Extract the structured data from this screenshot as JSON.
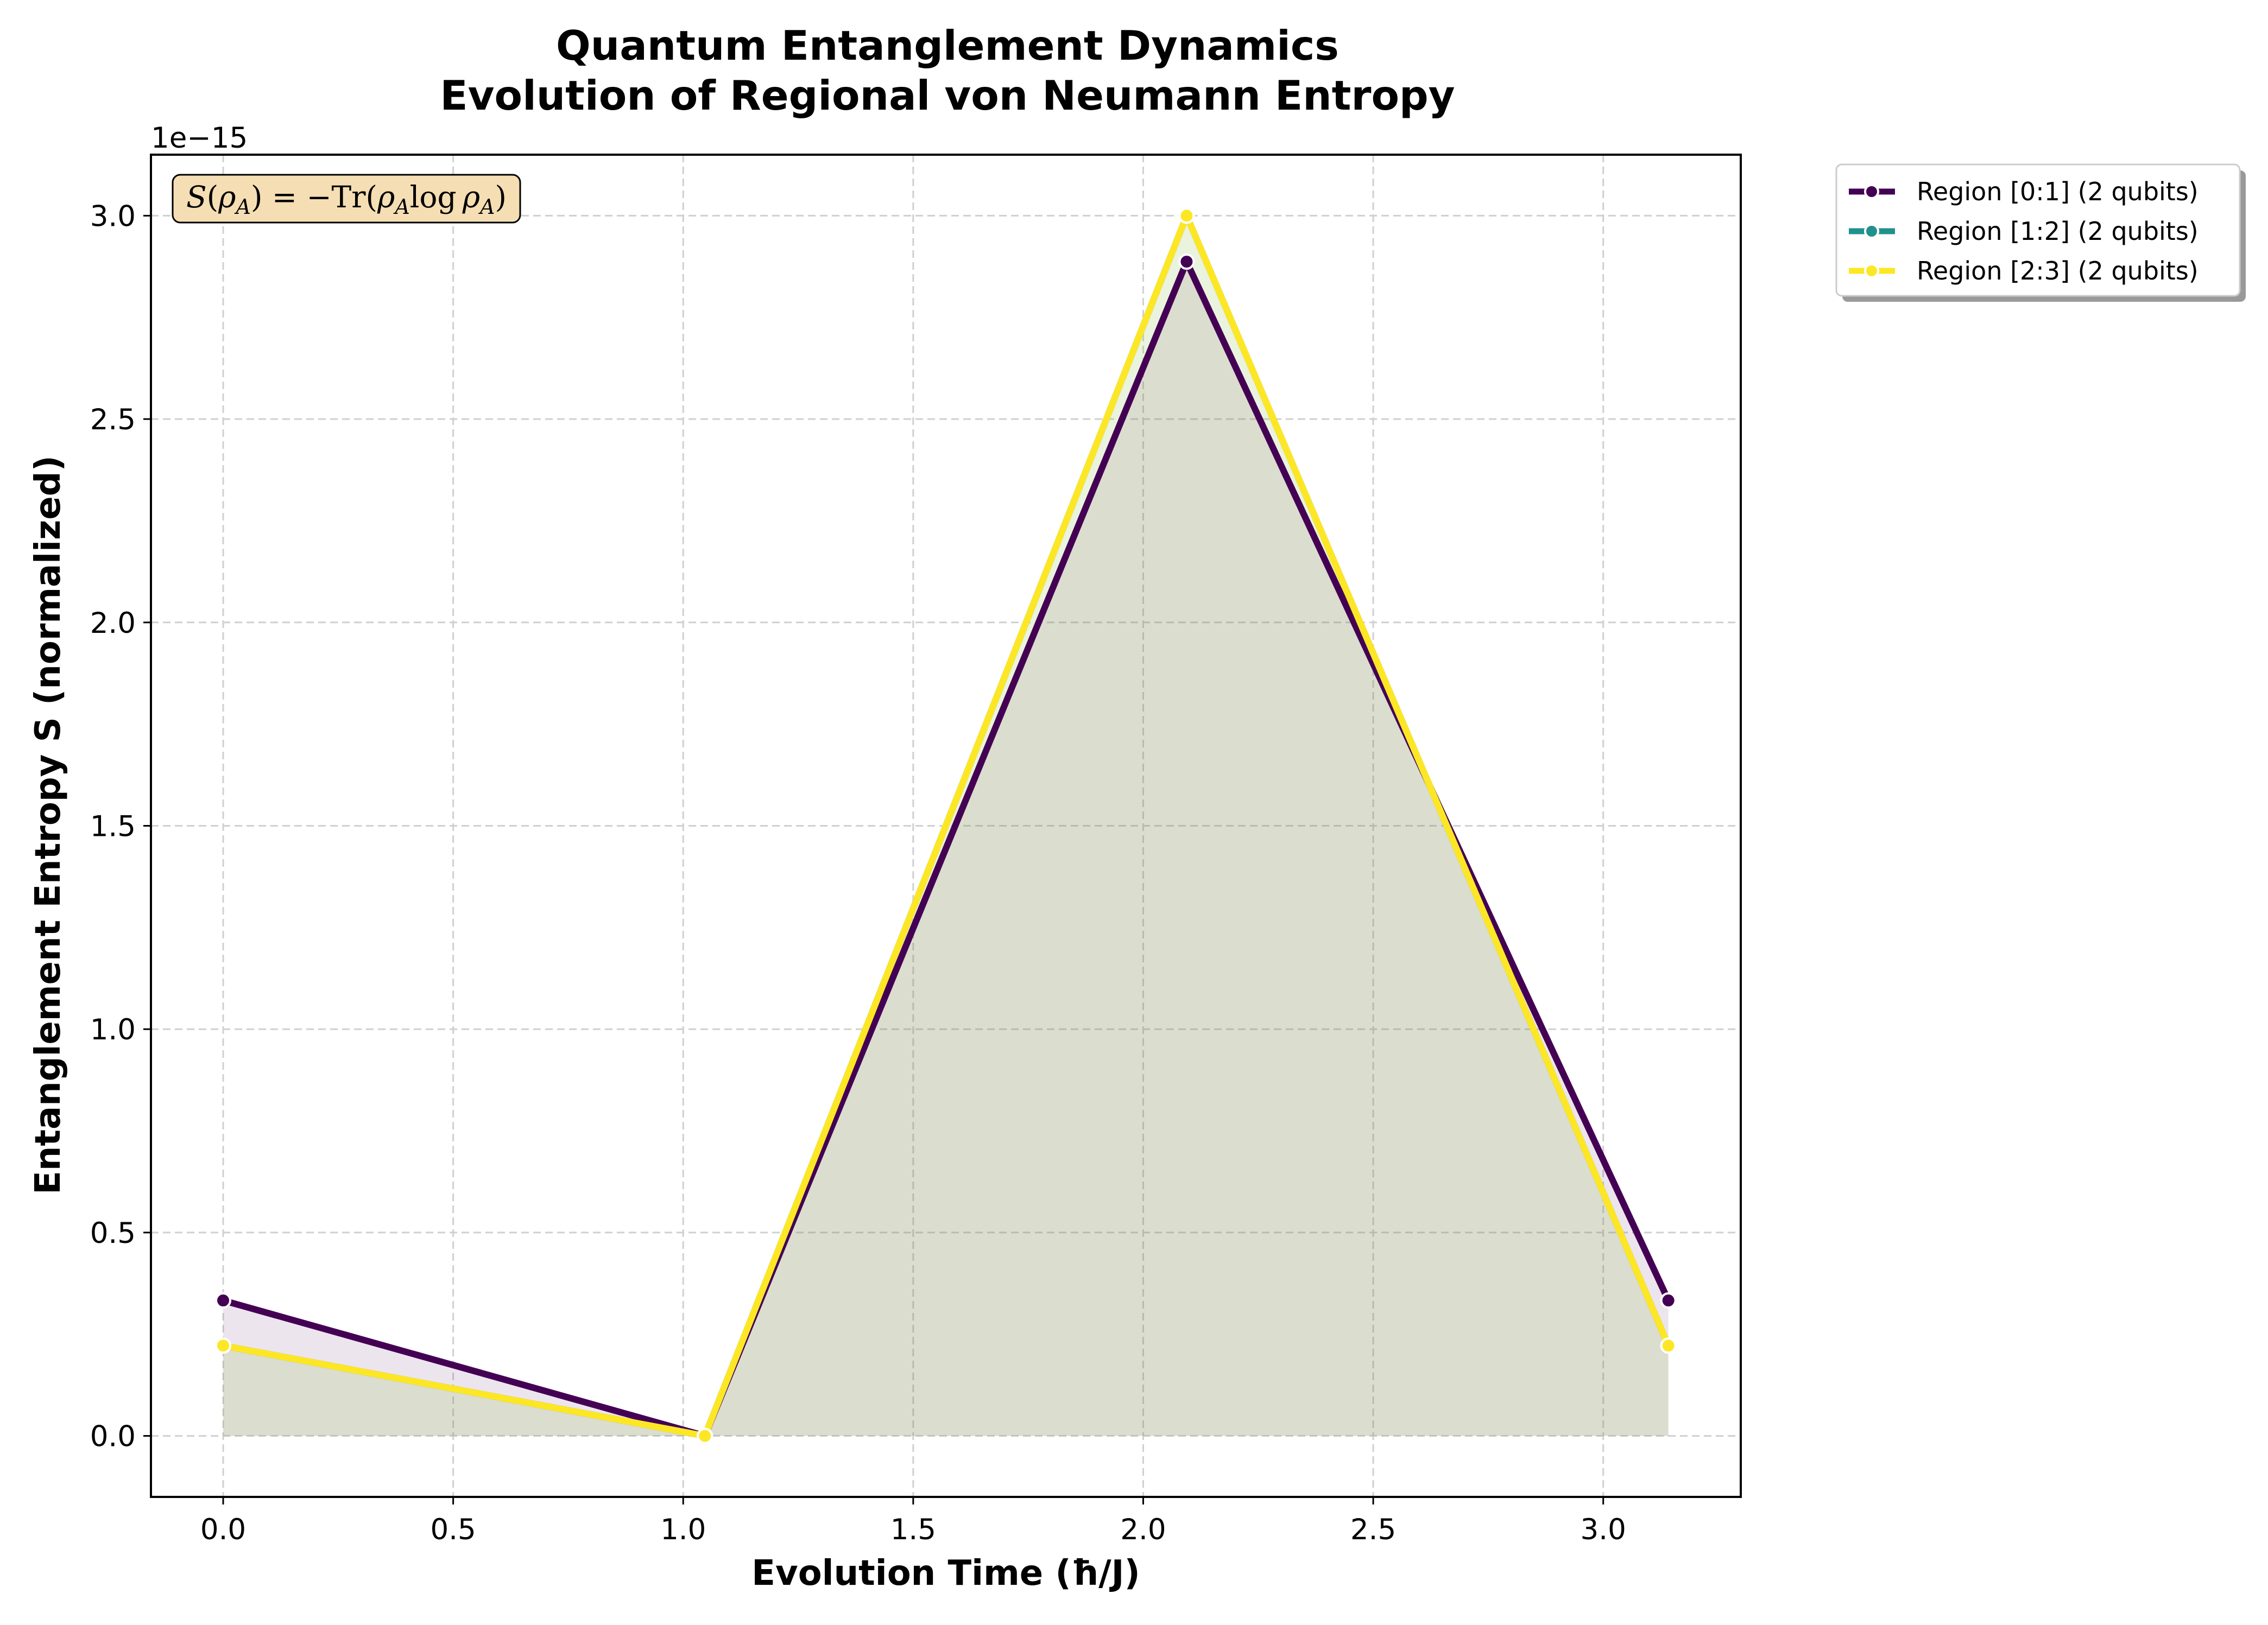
{
  "chart_data": {
    "type": "line",
    "title_line1": "Quantum Entanglement Dynamics",
    "title_line2": "Evolution of Regional von Neumann Entropy",
    "xlabel": "Evolution Time (ħ/J)",
    "ylabel": "Entanglement Entropy S (normalized)",
    "y_scale_label": "1e−15",
    "y_scale": 1e-15,
    "xlim": [
      -0.157,
      3.299
    ],
    "ylim": [
      -0.15,
      3.15
    ],
    "x_ticks": [
      0.0,
      0.5,
      1.0,
      1.5,
      2.0,
      2.5,
      3.0
    ],
    "x_tick_labels": [
      "0.0",
      "0.5",
      "1.0",
      "1.5",
      "2.0",
      "2.5",
      "3.0"
    ],
    "y_ticks": [
      0.0,
      0.5,
      1.0,
      1.5,
      2.0,
      2.5,
      3.0
    ],
    "y_tick_labels": [
      "0.0",
      "0.5",
      "1.0",
      "1.5",
      "2.0",
      "2.5",
      "3.0"
    ],
    "grid": true,
    "legend_position": "outside-top-right",
    "annotation": {
      "text": "S(ρ_A) = −Tr(ρ_A log ρ_A)",
      "position": "top-left",
      "background": "#f5deb3"
    },
    "x": [
      0.0,
      1.0472,
      2.0944,
      3.1416
    ],
    "series": [
      {
        "name": "Region [0:1] (2 qubits)",
        "color": "#440154",
        "values": [
          0.333,
          0.0,
          2.887,
          0.333
        ]
      },
      {
        "name": "Region [1:2] (2 qubits)",
        "color": "#21918c",
        "values": [
          0.222,
          0.0,
          3.0,
          0.222
        ]
      },
      {
        "name": "Region [2:3] (2 qubits)",
        "color": "#fde725",
        "values": [
          0.222,
          0.0,
          3.0,
          0.222
        ]
      }
    ]
  }
}
